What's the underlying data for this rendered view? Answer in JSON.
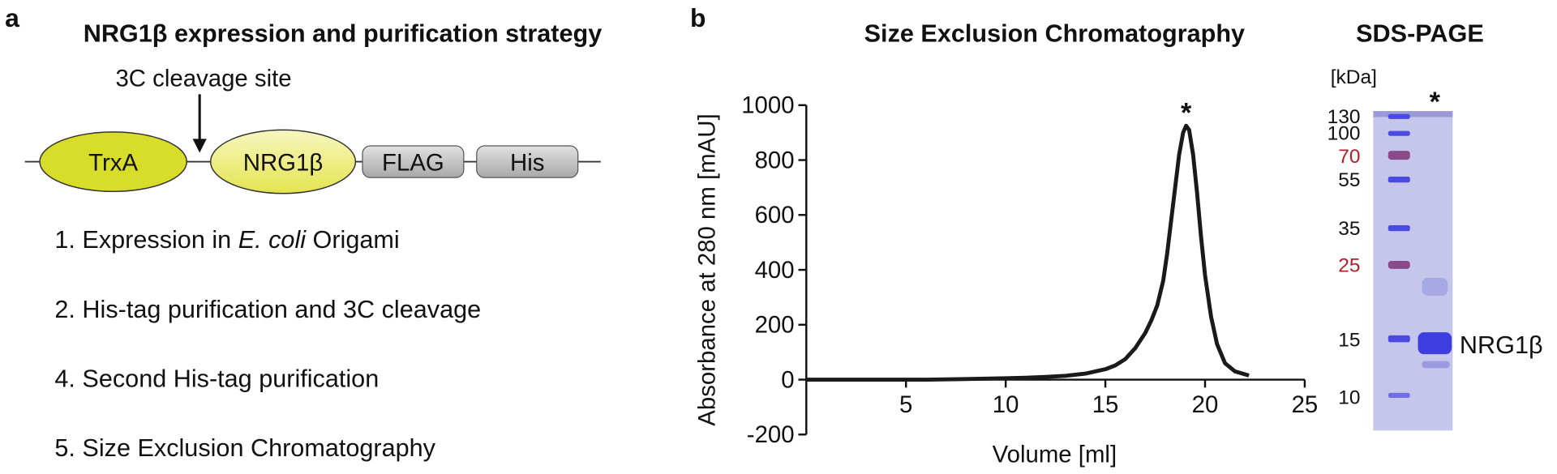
{
  "panel_a": {
    "label": "a",
    "title": "NRG1β expression and purification strategy",
    "site_label": "3C cleavage site",
    "domains": [
      "TrxA",
      "NRG1β",
      "FLAG",
      "His"
    ],
    "steps": [
      [
        "1. Expression in ",
        "E. coli",
        " Origami"
      ],
      [
        "2. His-tag purification and 3C cleavage"
      ],
      [
        "4. Second His-tag purification"
      ],
      [
        "5. Size Exclusion Chromatography"
      ]
    ]
  },
  "panel_b_label": "b",
  "chart_data": {
    "type": "line",
    "title": "Size Exclusion Chromatography",
    "x_label": "Volume [ml]",
    "y_label": "Absorbance at 280 nm [mAU]",
    "x": [
      0,
      2,
      4,
      6,
      8,
      10,
      11,
      12,
      13,
      14,
      15,
      15.5,
      16,
      16.5,
      17,
      17.3,
      17.6,
      17.9,
      18.1,
      18.3,
      18.5,
      18.7,
      18.9,
      19.05,
      19.2,
      19.4,
      19.6,
      19.8,
      20,
      20.3,
      20.6,
      21,
      21.5,
      22.2
    ],
    "values": [
      0,
      0,
      0,
      0,
      2,
      5,
      7,
      10,
      14,
      22,
      38,
      52,
      75,
      115,
      170,
      215,
      270,
      360,
      460,
      580,
      700,
      820,
      900,
      925,
      910,
      820,
      680,
      520,
      380,
      230,
      130,
      60,
      30,
      15
    ],
    "color": "#1a1a1a",
    "xlim": [
      0,
      25
    ],
    "xticks": [
      5,
      10,
      15,
      20,
      25
    ],
    "ylim": [
      -200,
      1000
    ],
    "yticks": [
      -200,
      0,
      200,
      400,
      600,
      800,
      1000
    ],
    "annotation": "*"
  },
  "gel": {
    "title": "SDS-PAGE",
    "unit": "[kDa]",
    "markers": [
      "130",
      "100",
      "70",
      "55",
      "35",
      "25",
      "15",
      "10"
    ],
    "lane_mark": "*",
    "band_label": "NRG1β"
  }
}
